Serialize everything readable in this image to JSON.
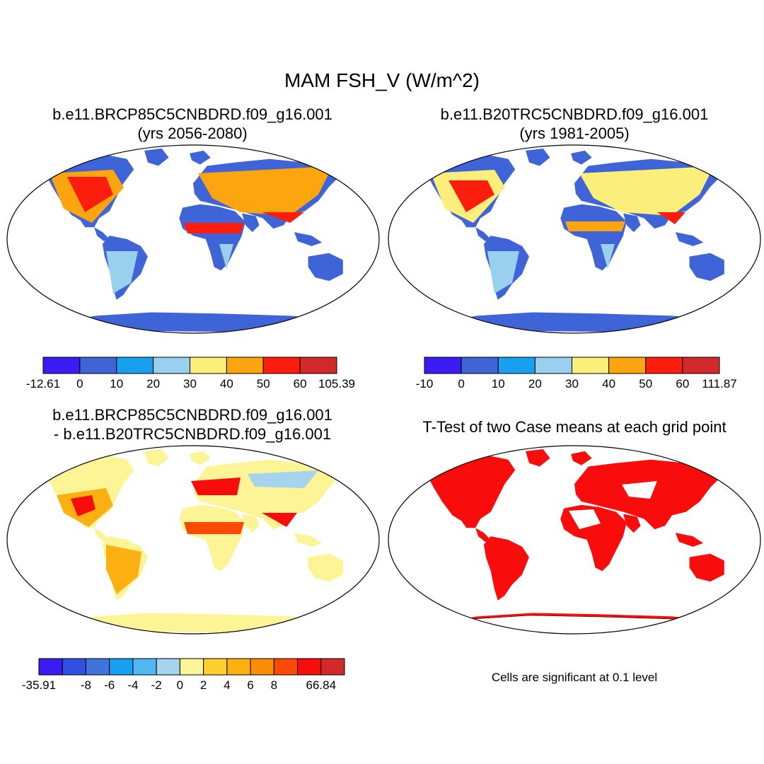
{
  "main_title": "MAM FSH_V (W/m^2)",
  "panels": {
    "top_left": {
      "title_line1": "b.e11.BRCP85C5CNBDRD.f09_g16.001",
      "title_line2": "(yrs 2056-2080)"
    },
    "top_right": {
      "title_line1": "b.e11.B20TRC5CNBDRD.f09_g16.001",
      "title_line2": "(yrs 1981-2005)"
    },
    "bottom_left": {
      "title_line1": "b.e11.BRCP85C5CNBDRD.f09_g16.001",
      "title_line2": "- b.e11.B20TRC5CNBDRD.f09_g16.001"
    },
    "bottom_right": {
      "title_line1": "T-Test of two Case means at each grid point",
      "note": "Cells are significant at 0.1 level"
    }
  },
  "colorbars": {
    "top_left": {
      "labels": [
        "-12.61",
        "0",
        "10",
        "20",
        "30",
        "40",
        "50",
        "60",
        "105.39"
      ],
      "colors": [
        "#3a1cf2",
        "#3e64d8",
        "#18a0f0",
        "#98d0ee",
        "#fbee7a",
        "#fda50e",
        "#fd1d0c",
        "#d22a2a"
      ]
    },
    "top_right": {
      "labels": [
        "-10",
        "0",
        "10",
        "20",
        "30",
        "40",
        "50",
        "60",
        "111.87"
      ],
      "colors": [
        "#3a1cf2",
        "#3e64d8",
        "#18a0f0",
        "#98d0ee",
        "#fbee7a",
        "#fda50e",
        "#fd1d0c",
        "#d22a2a"
      ]
    },
    "bottom_left": {
      "labels": [
        "-35.91",
        "",
        "-8",
        "-6",
        "-4",
        "-2",
        "0",
        "2",
        "4",
        "6",
        "8",
        "",
        "66.84"
      ],
      "colors": [
        "#3a1cf2",
        "#2e4fe0",
        "#3e74dc",
        "#18a0f0",
        "#50b8f0",
        "#a6d4ee",
        "#fdf495",
        "#fcd02e",
        "#fdb012",
        "#fc8b06",
        "#fb4a06",
        "#f80c0c",
        "#d22a2a"
      ]
    }
  },
  "map_fill_colors": {
    "antarctica_top": "#3e64d8",
    "antarctica_diff": "#fdf495",
    "significance": "#f80c0c"
  }
}
